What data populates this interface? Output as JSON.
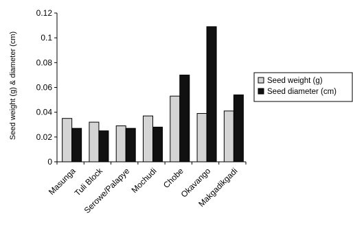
{
  "chart_data": {
    "type": "bar",
    "categories": [
      "Masunga",
      "Tuli Block",
      "Serowe/Palapye",
      "Mochudi",
      "Chobe",
      "Okavango",
      "Makgadikgadi"
    ],
    "series": [
      {
        "name": "Seed weight (g)",
        "color": "#d4d4d4",
        "values": [
          0.035,
          0.032,
          0.029,
          0.037,
          0.053,
          0.039,
          0.041
        ]
      },
      {
        "name": "Seed diameter (cm)",
        "color": "#111111",
        "values": [
          0.027,
          0.025,
          0.027,
          0.028,
          0.07,
          0.109,
          0.054
        ]
      }
    ],
    "ylabel": "Seed weight (g) & diameter (cm)",
    "xlabel": "",
    "ylim": [
      0,
      0.12
    ],
    "yticks": [
      0,
      0.02,
      0.04,
      0.06,
      0.08,
      0.1,
      0.12
    ],
    "ytick_labels": [
      "0",
      "0.02",
      "0.04",
      "0.06",
      "0.08",
      "0.1",
      "0.12"
    ],
    "grid": false,
    "legend_position": "right"
  }
}
